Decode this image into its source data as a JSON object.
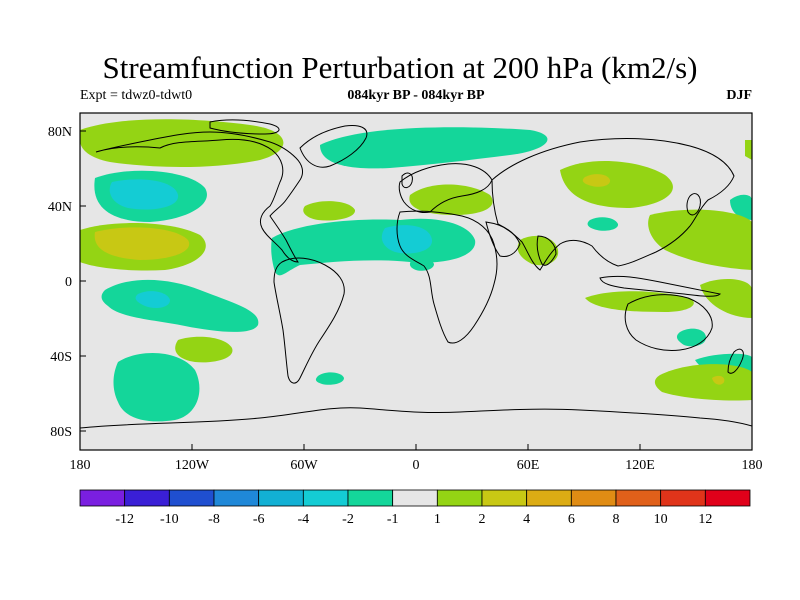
{
  "title": "Streamfunction Perturbation at 200 hPa (km2/s)",
  "subtitle_center": "084kyr BP - 084kyr BP",
  "subtitle_left": "Expt = tdwz0-tdwt0",
  "subtitle_right": "DJF",
  "map": {
    "y_ticks": [
      "80N",
      "40N",
      "0",
      "40S",
      "80S"
    ],
    "x_ticks": [
      "180",
      "120W",
      "60W",
      "0",
      "60E",
      "120E",
      "180"
    ],
    "background_color": "#e6e6e6",
    "coastline_color": "#000000"
  },
  "colorbar": {
    "colors": [
      "#7a1fe0",
      "#3a1fd6",
      "#1f4fd0",
      "#1f88d8",
      "#12b0d4",
      "#14ccd4",
      "#14d69a",
      "#e6e6e6",
      "#94d414",
      "#c8c814",
      "#dcac14",
      "#e08c14",
      "#e0601a",
      "#e0341a",
      "#e0001a"
    ],
    "labels": [
      "-12",
      "-10",
      "-8",
      "-6",
      "-4",
      "-2",
      "-1",
      "1",
      "2",
      "4",
      "6",
      "8",
      "10",
      "12"
    ]
  }
}
